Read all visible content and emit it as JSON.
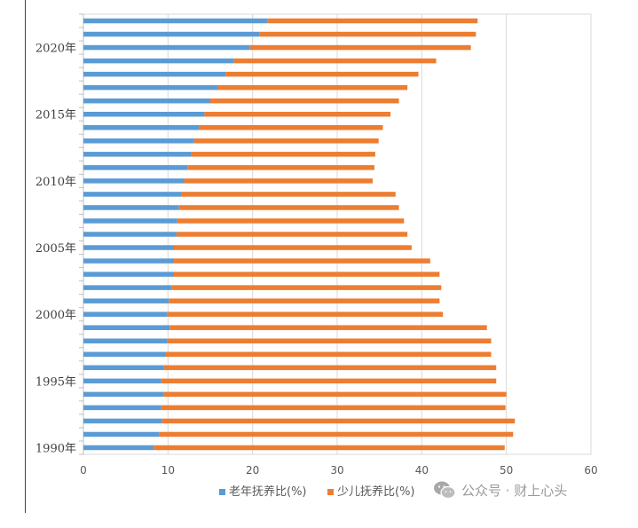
{
  "chart_data": {
    "type": "bar",
    "orientation": "horizontal",
    "stacked": true,
    "categories": [
      "1990年",
      "1991年",
      "1992年",
      "1993年",
      "1994年",
      "1995年",
      "1996年",
      "1997年",
      "1998年",
      "1999年",
      "2000年",
      "2001年",
      "2002年",
      "2003年",
      "2004年",
      "2005年",
      "2006年",
      "2007年",
      "2008年",
      "2009年",
      "2010年",
      "2011年",
      "2012年",
      "2013年",
      "2014年",
      "2015年",
      "2016年",
      "2017年",
      "2018年",
      "2019年",
      "2020年",
      "2021年",
      "2022年"
    ],
    "y_tick_labels": [
      "1990年",
      "1995年",
      "2000年",
      "2005年",
      "2010年",
      "2015年",
      "2020年"
    ],
    "series": [
      {
        "name": "老年抚养比(%)",
        "color": "#5b9bd5",
        "values": [
          8.3,
          9.0,
          9.3,
          9.2,
          9.5,
          9.2,
          9.5,
          9.7,
          9.9,
          10.2,
          9.9,
          10.1,
          10.4,
          10.7,
          10.7,
          10.7,
          11.0,
          11.1,
          11.3,
          11.6,
          11.9,
          12.3,
          12.7,
          13.1,
          13.7,
          14.3,
          15.0,
          15.9,
          16.8,
          17.8,
          19.7,
          20.8,
          21.8
        ]
      },
      {
        "name": "少儿抚养比(%)",
        "color": "#ed7d31",
        "values": [
          41.5,
          41.8,
          41.7,
          40.7,
          40.5,
          39.6,
          39.3,
          38.5,
          38.3,
          37.5,
          32.6,
          32.0,
          31.9,
          31.4,
          30.3,
          28.1,
          27.3,
          26.8,
          26.0,
          25.3,
          22.3,
          22.1,
          21.8,
          21.8,
          21.7,
          22.0,
          22.3,
          22.4,
          22.8,
          23.9,
          26.1,
          25.6,
          24.8
        ]
      }
    ],
    "xlim": [
      0,
      60
    ],
    "x_ticks": [
      0,
      10,
      20,
      30,
      40,
      50,
      60
    ],
    "legend_position": "bottom",
    "grid": "vertical"
  },
  "watermark": {
    "text": "公众号 · 财上心头",
    "icon": "wechat-icon"
  }
}
